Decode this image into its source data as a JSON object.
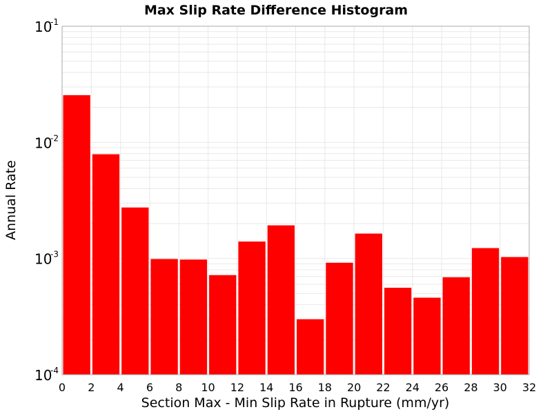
{
  "chart_data": {
    "type": "bar",
    "title": "Max Slip Rate Difference Histogram",
    "xlabel": "Section Max - Min Slip Rate in Rupture (mm/yr)",
    "ylabel": "Annual Rate",
    "y_scale": "log",
    "xlim": [
      0,
      32
    ],
    "ylim": [
      0.0001,
      0.1
    ],
    "x_ticks": [
      "0",
      "2",
      "4",
      "6",
      "8",
      "10",
      "12",
      "14",
      "16",
      "18",
      "20",
      "22",
      "24",
      "26",
      "28",
      "30",
      "32"
    ],
    "y_ticks": [
      {
        "base": "10",
        "exp": "-4"
      },
      {
        "base": "10",
        "exp": "-3"
      },
      {
        "base": "10",
        "exp": "-2"
      },
      {
        "base": "10",
        "exp": "-1"
      }
    ],
    "bin_width": 2,
    "bins": [
      {
        "start": 0,
        "end": 2,
        "value": 0.0255
      },
      {
        "start": 2,
        "end": 4,
        "value": 0.0079
      },
      {
        "start": 4,
        "end": 6,
        "value": 0.00275
      },
      {
        "start": 6,
        "end": 8,
        "value": 0.00099
      },
      {
        "start": 8,
        "end": 10,
        "value": 0.00098
      },
      {
        "start": 10,
        "end": 12,
        "value": 0.00072
      },
      {
        "start": 12,
        "end": 14,
        "value": 0.0014
      },
      {
        "start": 14,
        "end": 16,
        "value": 0.00193
      },
      {
        "start": 16,
        "end": 18,
        "value": 0.0003
      },
      {
        "start": 18,
        "end": 20,
        "value": 0.00092
      },
      {
        "start": 20,
        "end": 22,
        "value": 0.00164
      },
      {
        "start": 22,
        "end": 24,
        "value": 0.00056
      },
      {
        "start": 24,
        "end": 26,
        "value": 0.00046
      },
      {
        "start": 26,
        "end": 28,
        "value": 0.00069
      },
      {
        "start": 28,
        "end": 30,
        "value": 0.00123
      },
      {
        "start": 30,
        "end": 32,
        "value": 0.00103
      }
    ],
    "bar_color": "#ff0000",
    "grid": true,
    "grid_color": "#e8e8e8",
    "legend": "none"
  }
}
